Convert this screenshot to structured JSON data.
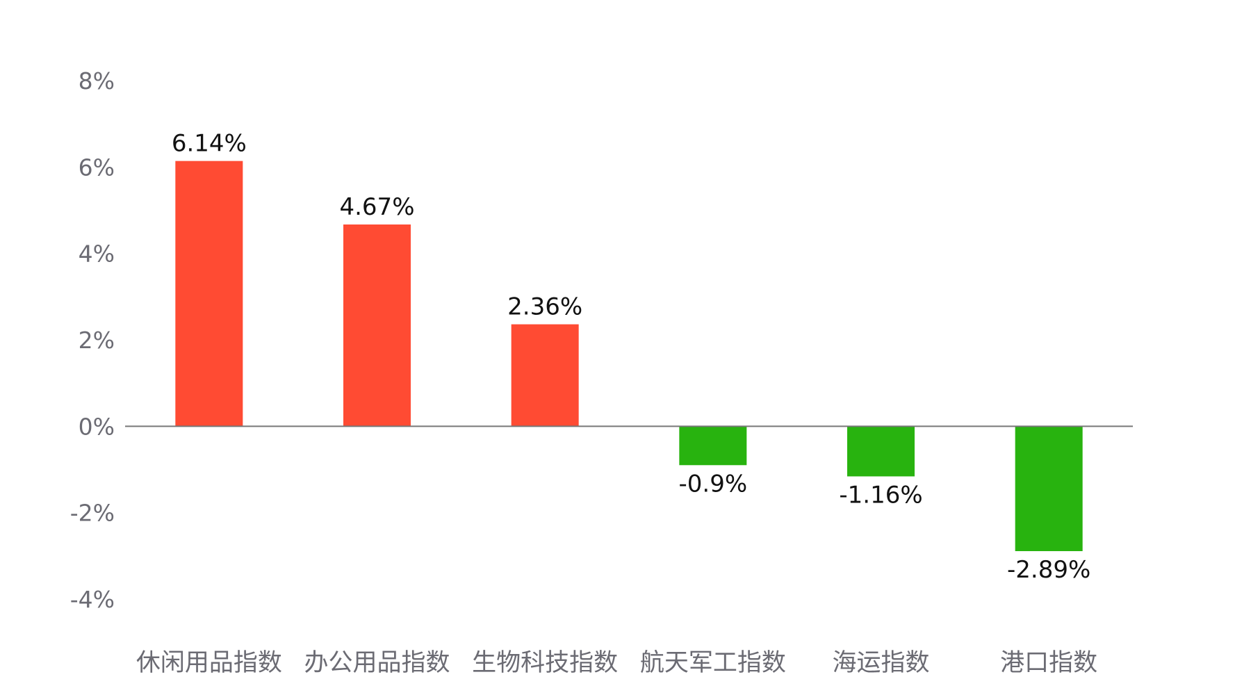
{
  "chart_data": {
    "type": "bar",
    "title": "",
    "xlabel": "",
    "ylabel": "",
    "categories": [
      "休闲用品指数",
      "办公用品指数",
      "生物科技指数",
      "航天军工指数",
      "海运指数",
      "港口指数"
    ],
    "values": [
      6.14,
      4.67,
      2.36,
      -0.9,
      -1.16,
      -2.89
    ],
    "data_labels": [
      "6.14%",
      "4.67%",
      "2.36%",
      "-0.9%",
      "-1.16%",
      "-2.89%"
    ],
    "ylim": [
      -4,
      8
    ],
    "yticks": [
      8,
      6,
      4,
      2,
      0,
      -2,
      -4
    ],
    "ytick_labels": [
      "8%",
      "6%",
      "4%",
      "2%",
      "0%",
      "-2%",
      "-4%"
    ],
    "grid": false,
    "legend": "none",
    "colors": {
      "positive": "#ff4b33",
      "negative": "#28b30f",
      "axis_text": "#6b6b73",
      "label_text": "#111111",
      "baseline": "#777777"
    }
  }
}
